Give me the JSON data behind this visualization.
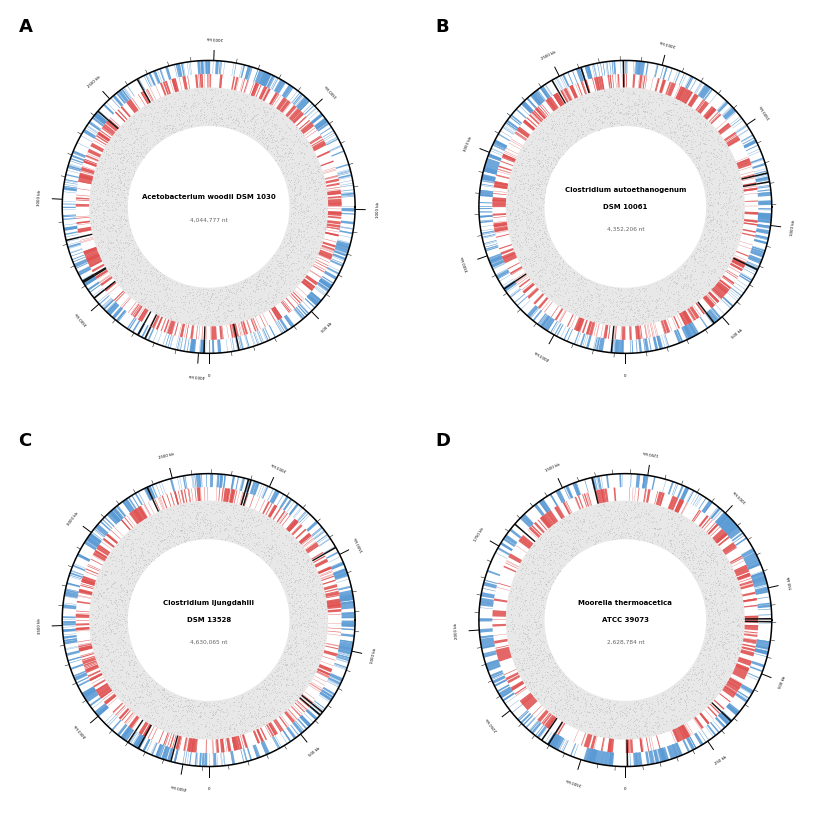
{
  "panels": [
    {
      "label": "A",
      "title": "Acetobacterium woodii DSM 1030",
      "title2": "",
      "size_label": "4,044,777 nt",
      "genome_size": 4044777,
      "tick_major_interval": 500000,
      "tick_minor_interval": 100000,
      "n_sense": 400,
      "n_antisense": 350,
      "n_rrna": 10,
      "seed": 42
    },
    {
      "label": "B",
      "title": "Clostridium autoethanogenum",
      "title2": "DSM 10061",
      "size_label": "4,352,206 nt",
      "genome_size": 4352206,
      "tick_major_interval": 500000,
      "tick_minor_interval": 100000,
      "n_sense": 380,
      "n_antisense": 360,
      "n_rrna": 9,
      "seed": 123
    },
    {
      "label": "C",
      "title": "Clostridium ljungdahlii",
      "title2": "DSM 13528",
      "size_label": "4,630,065 nt",
      "genome_size": 4630065,
      "tick_major_interval": 500000,
      "tick_minor_interval": 100000,
      "n_sense": 390,
      "n_antisense": 370,
      "n_rrna": 9,
      "seed": 7
    },
    {
      "label": "D",
      "title": "Moorella thermoacetica",
      "title2": "ATCC 39073",
      "size_label": "2,628,784 nt",
      "genome_size": 2628784,
      "tick_major_interval": 250000,
      "tick_minor_interval": 50000,
      "n_sense": 260,
      "n_antisense": 220,
      "n_rrna": 8,
      "seed": 99
    }
  ],
  "sense_color": "#5b9bd5",
  "antisense_color": "#e05252",
  "rrna_color": "#111111",
  "gc_dot_color": "#bbbbbb",
  "outer_r": 0.87,
  "sense_outer": 0.87,
  "sense_inner": 0.79,
  "antisense_outer": 0.79,
  "antisense_inner": 0.71,
  "gc_outer": 0.71,
  "gc_inner": 0.48,
  "major_tick_out": 0.93,
  "minor_tick_out": 0.895,
  "label_r": 1.005
}
